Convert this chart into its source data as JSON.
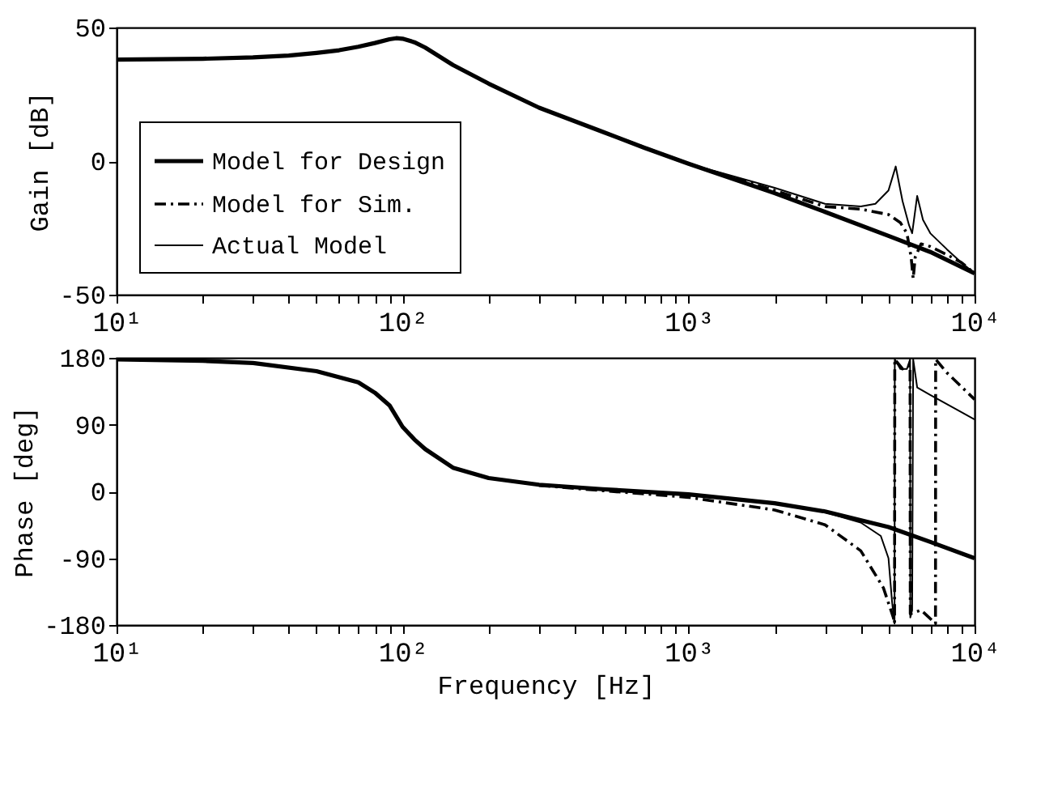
{
  "chart_data": [
    {
      "type": "line",
      "ylabel": "Gain [dB]",
      "legend": "bottom left",
      "xlim": [
        10,
        10000
      ],
      "ylim": [
        -50,
        50
      ],
      "log": "x",
      "yticks": [
        -50,
        0,
        50
      ],
      "xticks": [
        {
          "value": 10,
          "label": "10¹"
        },
        {
          "value": 20,
          "label": null
        },
        {
          "value": 30,
          "label": null
        },
        {
          "value": 40,
          "label": null
        },
        {
          "value": 50,
          "label": null
        },
        {
          "value": 60,
          "label": null
        },
        {
          "value": 70,
          "label": null
        },
        {
          "value": 80,
          "label": null
        },
        {
          "value": 90,
          "label": null
        },
        {
          "value": 100,
          "label": "10²"
        },
        {
          "value": 200,
          "label": null
        },
        {
          "value": 300,
          "label": null
        },
        {
          "value": 400,
          "label": null
        },
        {
          "value": 500,
          "label": null
        },
        {
          "value": 600,
          "label": null
        },
        {
          "value": 700,
          "label": null
        },
        {
          "value": 800,
          "label": null
        },
        {
          "value": 900,
          "label": null
        },
        {
          "value": 1000,
          "label": "10³"
        },
        {
          "value": 2000,
          "label": null
        },
        {
          "value": 3000,
          "label": null
        },
        {
          "value": 4000,
          "label": null
        },
        {
          "value": 5000,
          "label": null
        },
        {
          "value": 6000,
          "label": null
        },
        {
          "value": 7000,
          "label": null
        },
        {
          "value": 8000,
          "label": null
        },
        {
          "value": 9000,
          "label": null
        },
        {
          "value": 10000,
          "label": "10⁴"
        }
      ],
      "series": [
        {
          "name": "Model for Design",
          "color": "#000000",
          "line_style": "solid",
          "x": [
            10,
            20,
            30,
            40,
            50,
            60,
            70,
            80,
            90,
            95,
            100,
            110,
            120,
            150,
            200,
            300,
            500,
            700,
            1000,
            2000,
            3000,
            5000,
            7000,
            10000
          ],
          "values": [
            38,
            38.3,
            38.8,
            39.5,
            40.5,
            41.5,
            42.8,
            44.2,
            45.6,
            46,
            45.8,
            44.5,
            42.5,
            36,
            29,
            20,
            11,
            5,
            -1,
            -12,
            -19,
            -28,
            -34,
            -42
          ]
        },
        {
          "name": "Model for Sim.",
          "color": "#000000",
          "line_style": "dashed",
          "x": [
            500,
            1000,
            2000,
            3000,
            4000,
            5000,
            5500,
            5800,
            6000,
            6100,
            6200,
            6500,
            7000,
            8000,
            9000,
            10000
          ],
          "values": [
            11,
            -1,
            -11,
            -17,
            -18,
            -20,
            -23,
            -27,
            -36,
            -44,
            -36,
            -31,
            -32,
            -35,
            -38,
            -42
          ]
        },
        {
          "name": "Actual Model",
          "color": "#000000",
          "line_style": "solid",
          "x": [
            500,
            1000,
            2000,
            3000,
            4000,
            4500,
            5000,
            5300,
            5600,
            5900,
            6050,
            6300,
            6600,
            7000,
            8000,
            9000,
            10000
          ],
          "values": [
            11,
            -1,
            -10,
            -16,
            -17,
            -16,
            -11,
            -2,
            -15,
            -24,
            -27,
            -13,
            -22,
            -27,
            -33,
            -38,
            -42
          ]
        }
      ]
    },
    {
      "type": "line",
      "xlabel": "Frequency [Hz]",
      "ylabel": "Phase [deg]",
      "xlim": [
        10,
        10000
      ],
      "ylim": [
        -180,
        180
      ],
      "log": "x",
      "yticks": [
        -180,
        -90,
        0,
        90,
        180
      ],
      "xticks": [
        {
          "value": 10,
          "label": "10¹"
        },
        {
          "value": 20,
          "label": null
        },
        {
          "value": 30,
          "label": null
        },
        {
          "value": 40,
          "label": null
        },
        {
          "value": 50,
          "label": null
        },
        {
          "value": 60,
          "label": null
        },
        {
          "value": 70,
          "label": null
        },
        {
          "value": 80,
          "label": null
        },
        {
          "value": 90,
          "label": null
        },
        {
          "value": 100,
          "label": "10²"
        },
        {
          "value": 200,
          "label": null
        },
        {
          "value": 300,
          "label": null
        },
        {
          "value": 400,
          "label": null
        },
        {
          "value": 500,
          "label": null
        },
        {
          "value": 600,
          "label": null
        },
        {
          "value": 700,
          "label": null
        },
        {
          "value": 800,
          "label": null
        },
        {
          "value": 900,
          "label": null
        },
        {
          "value": 1000,
          "label": "10³"
        },
        {
          "value": 2000,
          "label": null
        },
        {
          "value": 3000,
          "label": null
        },
        {
          "value": 4000,
          "label": null
        },
        {
          "value": 5000,
          "label": null
        },
        {
          "value": 6000,
          "label": null
        },
        {
          "value": 7000,
          "label": null
        },
        {
          "value": 8000,
          "label": null
        },
        {
          "value": 9000,
          "label": null
        },
        {
          "value": 10000,
          "label": "10⁴"
        }
      ],
      "series": [
        {
          "color": "#000000",
          "line_style": "solid",
          "x": [
            10,
            20,
            30,
            50,
            70,
            80,
            90,
            100,
            110,
            120,
            150,
            200,
            300,
            500,
            1000,
            2000,
            3000,
            5000,
            7000,
            10000
          ],
          "values": [
            178,
            176,
            173,
            162,
            147,
            133,
            116,
            87,
            70,
            57,
            32,
            18,
            9,
            3,
            -4,
            -16,
            -27,
            -48,
            -68,
            -90
          ]
        },
        {
          "color": "#000000",
          "line_style": "dashed",
          "x": [
            300,
            500,
            1000,
            2000,
            3000,
            4000,
            4800,
            5200,
            5250,
            5260,
            5600,
            5950,
            5960,
            6500,
            7300,
            7310,
            8000,
            10000
          ],
          "values": [
            8,
            1,
            -8,
            -25,
            -45,
            -80,
            -130,
            -170,
            -178,
            178,
            165,
            170,
            -165,
            -160,
            -178,
            178,
            160,
            124
          ]
        },
        {
          "color": "#000000",
          "line_style": "solid",
          "x": [
            2000,
            3000,
            4000,
            4700,
            5000,
            5150,
            5250,
            5260,
            5500,
            5800,
            5950,
            5960,
            6050,
            6100,
            6300,
            7000,
            10000
          ],
          "values": [
            -16,
            -28,
            -42,
            -60,
            -90,
            -150,
            -178,
            178,
            165,
            165,
            178,
            -170,
            -160,
            178,
            140,
            130,
            97
          ]
        }
      ]
    }
  ]
}
